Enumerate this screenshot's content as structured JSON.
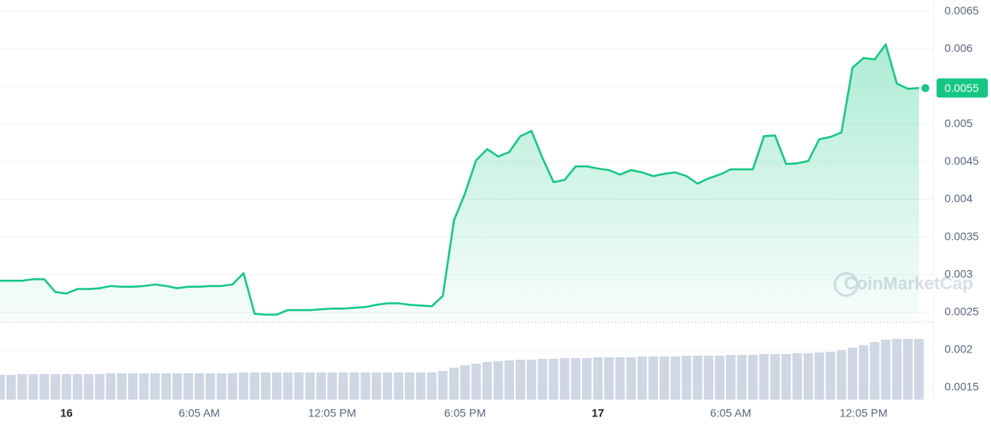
{
  "chart_data": {
    "type": "line",
    "watermark": "CoinMarketCap",
    "current_price_label": "0.0055",
    "categories": [
      null,
      null,
      null,
      null,
      null,
      null,
      "16",
      null,
      null,
      null,
      null,
      null,
      null,
      null,
      null,
      null,
      null,
      null,
      "6:05 AM",
      null,
      null,
      null,
      null,
      null,
      null,
      null,
      null,
      null,
      null,
      null,
      "12:05 PM",
      null,
      null,
      null,
      null,
      null,
      null,
      null,
      null,
      null,
      null,
      null,
      "6:05 PM",
      null,
      null,
      null,
      null,
      null,
      null,
      null,
      null,
      null,
      null,
      null,
      "17",
      null,
      null,
      null,
      null,
      null,
      null,
      null,
      null,
      null,
      null,
      null,
      "6:05 AM",
      null,
      null,
      null,
      null,
      null,
      null,
      null,
      null,
      null,
      null,
      null,
      "12:05 PM",
      null,
      null,
      null,
      null,
      null
    ],
    "series": [
      {
        "color": "#16c784",
        "values": [
          0.00292,
          0.00292,
          0.00292,
          0.00294,
          0.00294,
          0.00277,
          0.00275,
          0.00281,
          0.00281,
          0.00282,
          0.00285,
          0.00284,
          0.00284,
          0.00285,
          0.00287,
          0.00285,
          0.00282,
          0.00284,
          0.00284,
          0.00285,
          0.00285,
          0.00287,
          0.00302,
          0.00248,
          0.00247,
          0.00247,
          0.00253,
          0.00253,
          0.00253,
          0.00254,
          0.00255,
          0.00255,
          0.00256,
          0.00257,
          0.0026,
          0.00262,
          0.00262,
          0.0026,
          0.00259,
          0.00258,
          0.00272,
          0.00372,
          0.00408,
          0.00452,
          0.00467,
          0.00457,
          0.00463,
          0.00484,
          0.00491,
          0.00455,
          0.00423,
          0.00426,
          0.00444,
          0.00444,
          0.00441,
          0.00439,
          0.00433,
          0.00439,
          0.00436,
          0.00431,
          0.00434,
          0.00436,
          0.00431,
          0.00421,
          0.00428,
          0.00433,
          0.0044,
          0.0044,
          0.0044,
          0.00484,
          0.00485,
          0.00447,
          0.00448,
          0.00451,
          0.0048,
          0.00483,
          0.00489,
          0.00575,
          0.00588,
          0.00586,
          0.00606,
          0.00554,
          0.00547,
          0.00548
        ]
      }
    ],
    "volume": {
      "color": "#cfd6e4",
      "values": [
        31,
        31,
        32,
        32,
        32,
        32,
        32,
        32,
        32,
        32,
        33,
        33,
        33,
        33,
        33,
        33,
        33,
        33,
        33,
        33,
        33,
        33,
        34,
        34,
        34,
        34,
        34,
        34,
        34,
        34,
        34,
        34,
        34,
        34,
        34,
        34,
        34,
        34,
        34,
        34,
        36,
        40,
        43,
        45,
        47,
        48,
        49,
        50,
        50,
        51,
        51,
        52,
        52,
        52,
        53,
        53,
        53,
        53,
        54,
        54,
        54,
        54,
        55,
        55,
        55,
        55,
        56,
        56,
        56,
        57,
        57,
        57,
        58,
        58,
        59,
        60,
        62,
        65,
        68,
        72,
        75,
        76,
        76,
        76
      ]
    },
    "ylim": [
      0.00134,
      0.00665
    ],
    "yticks": [
      0.0015,
      0.002,
      0.0025,
      0.003,
      0.0035,
      0.004,
      0.0045,
      0.005,
      0.0055,
      0.006,
      0.0065
    ],
    "grid": true
  }
}
